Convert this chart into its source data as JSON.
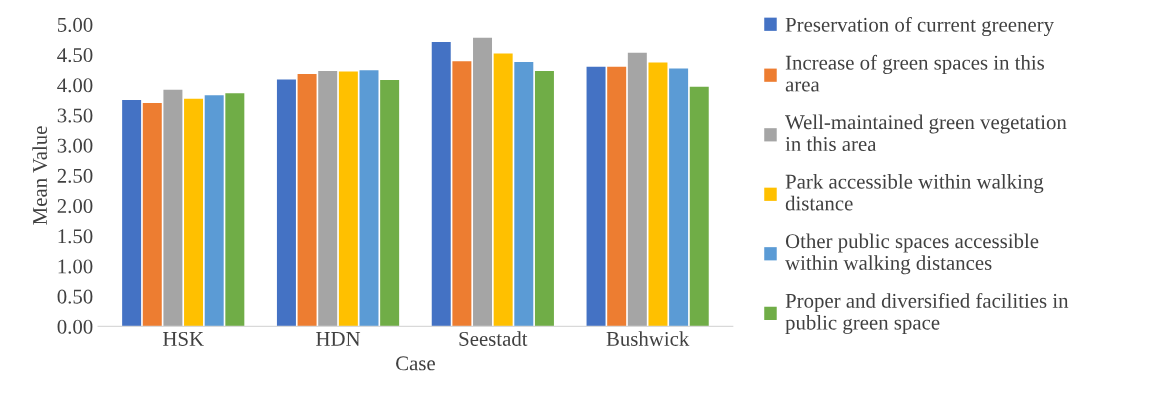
{
  "chart_data": {
    "type": "bar",
    "xlabel": "Case",
    "ylabel": "Mean Value",
    "categories": [
      "HSK",
      "HDN",
      "Seestadt",
      "Bushwick"
    ],
    "series": [
      {
        "name": "Preservation of current greenery",
        "color": "#4472c4",
        "values": [
          3.75,
          4.09,
          4.71,
          4.3
        ]
      },
      {
        "name": "Increase of green spaces in this\narea",
        "color": "#ed7d31",
        "values": [
          3.7,
          4.18,
          4.39,
          4.3
        ]
      },
      {
        "name": "Well-maintained green vegetation\nin this area",
        "color": "#a5a5a5",
        "values": [
          3.92,
          4.23,
          4.78,
          4.53
        ]
      },
      {
        "name": "Park accessible within walking\ndistance",
        "color": "#ffc000",
        "values": [
          3.77,
          4.22,
          4.52,
          4.37
        ]
      },
      {
        "name": "Other public spaces accessible\nwithin walking distances",
        "color": "#5b9bd5",
        "values": [
          3.83,
          4.24,
          4.38,
          4.27
        ]
      },
      {
        "name": "Proper and diversified facilities in\npublic green space",
        "color": "#70ad47",
        "values": [
          3.86,
          4.08,
          4.23,
          3.97
        ]
      }
    ],
    "ylim": [
      0,
      5
    ],
    "yticks": [
      {
        "value": 0,
        "label": "0.00"
      },
      {
        "value": 0.5,
        "label": "0.50"
      },
      {
        "value": 1,
        "label": "1.00"
      },
      {
        "value": 1.5,
        "label": "1.50"
      },
      {
        "value": 2,
        "label": "2.00"
      },
      {
        "value": 2.5,
        "label": "2.50"
      },
      {
        "value": 3,
        "label": "3.00"
      },
      {
        "value": 3.5,
        "label": "3.50"
      },
      {
        "value": 4,
        "label": "4.00"
      },
      {
        "value": 4.5,
        "label": "4.50"
      },
      {
        "value": 5,
        "label": "5.00"
      }
    ],
    "grid": false,
    "legend": "right"
  }
}
